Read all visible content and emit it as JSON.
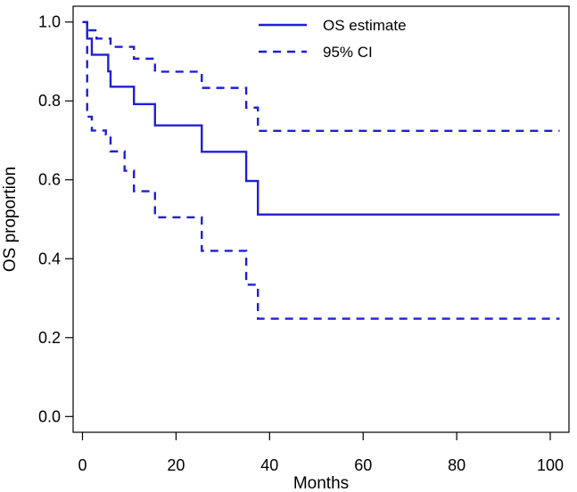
{
  "chart_data": {
    "type": "line",
    "title": "",
    "xlabel": "Months",
    "ylabel": "OS proportion",
    "xlim": [
      -2,
      104
    ],
    "ylim": [
      -0.04,
      1.04
    ],
    "xticks": [
      0,
      20,
      40,
      60,
      80,
      100
    ],
    "yticks": [
      0.0,
      0.2,
      0.4,
      0.6,
      0.8,
      1.0
    ],
    "xtick_labels": [
      "0",
      "20",
      "40",
      "60",
      "80",
      "100"
    ],
    "ytick_labels": [
      "0.0",
      "0.2",
      "0.4",
      "0.6",
      "0.8",
      "1.0"
    ],
    "grid": false,
    "legend_position": "top-right",
    "series": [
      {
        "name": "OS estimate",
        "style": "solid",
        "color": "#1f1fd6",
        "step": true,
        "x": [
          0,
          1,
          2,
          4,
          5.5,
          6,
          11,
          15.5,
          25.5,
          35,
          37.5,
          102
        ],
        "y": [
          1.0,
          0.958,
          0.917,
          0.917,
          0.875,
          0.836,
          0.792,
          0.738,
          0.671,
          0.597,
          0.512,
          0.512
        ]
      },
      {
        "name": "95% CI",
        "style": "dashed",
        "color": "#1f1fd6",
        "step": true,
        "x": [
          0,
          1,
          3,
          6,
          11,
          15.5,
          25.5,
          35,
          37.5,
          102
        ],
        "y": [
          1.0,
          0.979,
          0.958,
          0.937,
          0.907,
          0.874,
          0.833,
          0.783,
          0.724,
          0.724
        ]
      },
      {
        "name": "95% CI",
        "style": "dashed",
        "color": "#1f1fd6",
        "step": true,
        "show_in_legend": false,
        "x": [
          0,
          1,
          2,
          5,
          6,
          9,
          11,
          15.5,
          25.5,
          35,
          37.5,
          102
        ],
        "y": [
          1.0,
          0.76,
          0.725,
          0.715,
          0.672,
          0.623,
          0.571,
          0.505,
          0.42,
          0.334,
          0.248,
          0.248
        ]
      }
    ]
  }
}
